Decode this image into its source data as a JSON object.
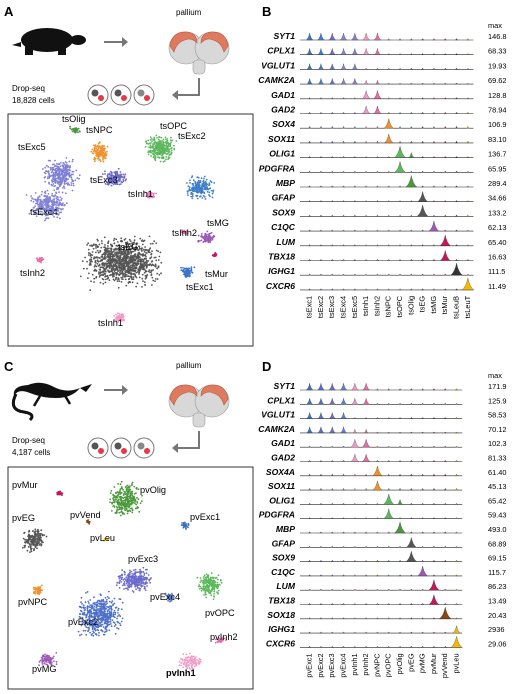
{
  "panels": {
    "A": {
      "label": "A",
      "pallium_label": "pallium",
      "method": "Drop-seq",
      "cells": "18,828 cells",
      "tsne_clusters": [
        {
          "name": "tsOlig",
          "color": "#4a9a3c"
        },
        {
          "name": "tsNPC",
          "color": "#f0922c"
        },
        {
          "name": "tsOPC",
          "color": "#5cb85c"
        },
        {
          "name": "tsExc5",
          "color": "#7f7fd6"
        },
        {
          "name": "tsExc3",
          "color": "#6b6bcc"
        },
        {
          "name": "tsExc2",
          "color": "#3f7fc8"
        },
        {
          "name": "tsExc4",
          "color": "#8282d9"
        },
        {
          "name": "tsInh1",
          "color": "#e37fb3"
        },
        {
          "name": "tsMG",
          "color": "#9b59b6"
        },
        {
          "name": "tsInh2",
          "color": "#d96aa8"
        },
        {
          "name": "tsMur",
          "color": "#c2185b"
        },
        {
          "name": "tsEG",
          "color": "#555555"
        },
        {
          "name": "tsExc1",
          "color": "#3b73c4"
        },
        {
          "name": "tsInh2",
          "color": "#e86aa6"
        },
        {
          "name": "tsInh1",
          "color": "#f29ac5"
        }
      ]
    },
    "B": {
      "label": "B",
      "max_header": "max",
      "genes": [
        "SYT1",
        "CPLX1",
        "VGLUT1",
        "CAMK2A",
        "GAD1",
        "GAD2",
        "SOX4",
        "SOX11",
        "OLIG1",
        "PDGFRA",
        "MBP",
        "GFAP",
        "SOX9",
        "C1QC",
        "LUM",
        "TBX18",
        "IGHG1",
        "CXCR6"
      ],
      "max_values": [
        "146.8",
        "68.33",
        "19.93",
        "69.62",
        "128.8",
        "78.94",
        "106.9",
        "83.10",
        "136.7",
        "65.95",
        "289.4",
        "34.66",
        "133.2",
        "62.13",
        "65.40",
        "16.63",
        "111.5",
        "11.49"
      ],
      "clusters": [
        "tsExc1",
        "tsExc2",
        "tsExc3",
        "tsExc4",
        "tsExc5",
        "tsInh1",
        "tsInh2",
        "tsNPC",
        "tsOPC",
        "tsOlig",
        "tsEG",
        "tsMG",
        "tsMur",
        "tsLeuB",
        "tsLeuT"
      ],
      "cluster_colors": [
        "#3b73c4",
        "#3f7fc8",
        "#6b6bcc",
        "#8282d9",
        "#7f7fd6",
        "#f29ac5",
        "#e86aa6",
        "#f0922c",
        "#5cb85c",
        "#4a9a3c",
        "#555555",
        "#9b59b6",
        "#c2185b",
        "#333333",
        "#f5b800"
      ]
    },
    "C": {
      "label": "C",
      "pallium_label": "pallium",
      "method": "Drop-seq",
      "cells": "4,187 cells",
      "tsne_clusters": [
        {
          "name": "pvMur",
          "color": "#c2185b"
        },
        {
          "name": "pvOlig",
          "color": "#4a9a3c"
        },
        {
          "name": "pvEG",
          "color": "#555555"
        },
        {
          "name": "pvVend",
          "color": "#8b4513"
        },
        {
          "name": "pvExc1",
          "color": "#3b73c4"
        },
        {
          "name": "pvLeu",
          "color": "#f5b800"
        },
        {
          "name": "pvExc3",
          "color": "#6b6bcc"
        },
        {
          "name": "pvExc4",
          "color": "#5a7fd0"
        },
        {
          "name": "pvOPC",
          "color": "#5cb85c"
        },
        {
          "name": "pvNPC",
          "color": "#f0922c"
        },
        {
          "name": "pvExc2",
          "color": "#4f70c8"
        },
        {
          "name": "pvInh2",
          "color": "#e86aa6"
        },
        {
          "name": "pvMG",
          "color": "#9b59b6"
        },
        {
          "name": "pvInh1",
          "color": "#f29ac5"
        }
      ]
    },
    "D": {
      "label": "D",
      "max_header": "max",
      "genes": [
        "SYT1",
        "CPLX1",
        "VGLUT1",
        "CAMK2A",
        "GAD1",
        "GAD2",
        "SOX4A",
        "SOX11",
        "OLIG1",
        "PDGFRA",
        "MBP",
        "GFAP",
        "SOX9",
        "C1QC",
        "LUM",
        "TBX18",
        "SOX18",
        "IGHG1",
        "CXCR6"
      ],
      "max_values": [
        "171.9",
        "125.9",
        "58.53",
        "70.12",
        "102.3",
        "81.33",
        "61.40",
        "45.13",
        "65.42",
        "59.43",
        "493.0",
        "68.89",
        "69.15",
        "115.7",
        "86.23",
        "13.49",
        "20.43",
        "2936",
        "29.06"
      ],
      "clusters": [
        "pvExc1",
        "pvExc2",
        "pvExc3",
        "pvExc4",
        "pvInh1",
        "pvInh2",
        "pvNPC",
        "pvOPC",
        "pvOlig",
        "pvEG",
        "pvMG",
        "pvMur",
        "pvVend",
        "pvLeu"
      ],
      "cluster_colors": [
        "#3b73c4",
        "#4f70c8",
        "#6b6bcc",
        "#5a7fd0",
        "#f29ac5",
        "#e86aa6",
        "#f0922c",
        "#5cb85c",
        "#4a9a3c",
        "#555555",
        "#9b59b6",
        "#c2185b",
        "#8b4513",
        "#f5b800"
      ]
    }
  }
}
